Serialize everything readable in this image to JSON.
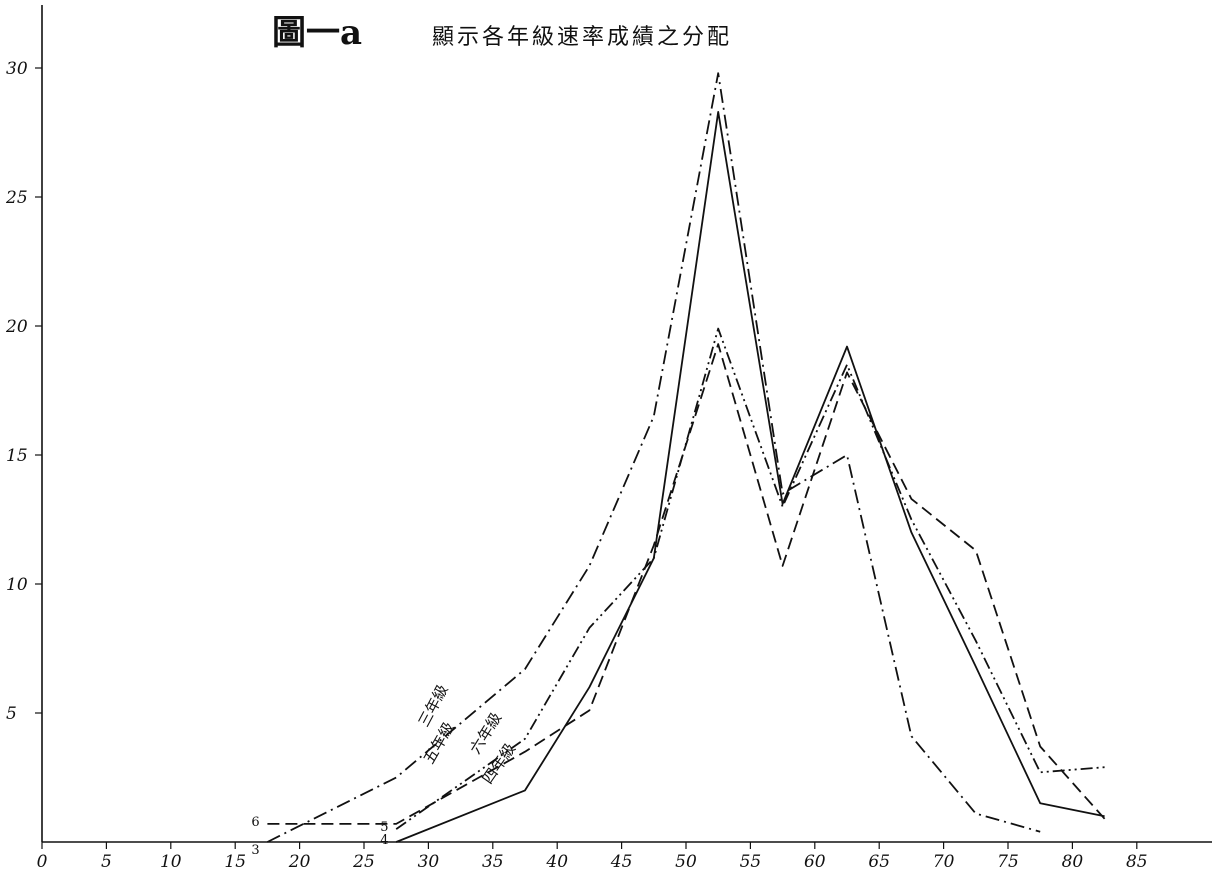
{
  "chart_data": {
    "type": "line",
    "title": "圖一a",
    "subtitle": "顯示各年級速率成績之分配",
    "xlabel": "",
    "ylabel": "",
    "xlim": [
      0,
      90
    ],
    "ylim": [
      0,
      31
    ],
    "x_ticks": [
      0,
      5,
      10,
      15,
      20,
      25,
      30,
      35,
      40,
      45,
      50,
      55,
      60,
      65,
      70,
      75,
      80,
      85
    ],
    "x_tick_labels": [
      "0",
      "5",
      "10",
      "15",
      "20",
      "25",
      "30",
      "35",
      "40",
      "45",
      "50",
      "55",
      "60",
      "65",
      "70",
      "75",
      "80",
      "85"
    ],
    "y_ticks": [
      5,
      10,
      15,
      20,
      25,
      30
    ],
    "y_tick_labels": [
      "5",
      "10",
      "15",
      "20",
      "25",
      "30"
    ],
    "grid": false,
    "series": [
      {
        "name": "三年級",
        "end_marker": "3",
        "style": "dash-dot",
        "x": [
          17.5,
          27.5,
          37.5,
          42.5,
          47.5,
          52.5,
          57.5,
          62.5,
          67.5,
          72.5,
          77.5
        ],
        "y": [
          0,
          2.5,
          6.7,
          10.7,
          16.5,
          29.8,
          13.5,
          15,
          4.1,
          1.1,
          0.4
        ]
      },
      {
        "name": "四年級",
        "end_marker": "4",
        "style": "solid",
        "x": [
          27.5,
          37.5,
          42.5,
          47.5,
          52.5,
          57.5,
          62.5,
          67.5,
          72.5,
          77.5,
          82.5
        ],
        "y": [
          0,
          2.0,
          6.0,
          11.0,
          28.3,
          13.1,
          19.2,
          12.0,
          6.8,
          1.5,
          1.0
        ]
      },
      {
        "name": "五年級",
        "end_marker": "5",
        "style": "dash-dot-dot",
        "x": [
          27.5,
          37.5,
          42.5,
          47.5,
          52.5,
          57.5,
          62.5,
          67.5,
          72.5,
          77.5,
          82.5
        ],
        "y": [
          0.5,
          4.0,
          8.3,
          11.0,
          19.9,
          13.0,
          18.5,
          12.5,
          7.8,
          2.7,
          2.9
        ]
      },
      {
        "name": "六年級",
        "end_marker": "6",
        "style": "dashed",
        "x": [
          17.5,
          27.5,
          37.5,
          42.5,
          47.5,
          52.5,
          57.5,
          62.5,
          67.5,
          72.5,
          77.5,
          82.5
        ],
        "y": [
          0.7,
          0.7,
          3.5,
          5.1,
          11.5,
          19.3,
          10.7,
          18.2,
          13.3,
          11.3,
          3.7,
          0.9
        ]
      }
    ]
  }
}
